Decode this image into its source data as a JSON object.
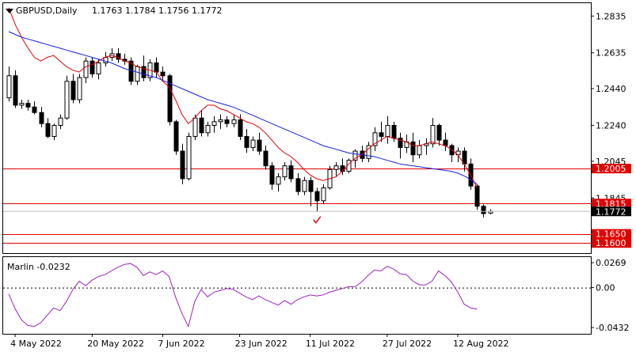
{
  "header": {
    "symbol_timeframe": "GBPUSD,Daily",
    "ohlc": "1.1763 1.1784 1.1756 1.1772"
  },
  "indicator": {
    "label": "Marlin -0.0232"
  },
  "colors": {
    "background": "#ffffff",
    "axis": "#000000",
    "ma_fast": "#e00000",
    "ma_slow": "#1020e0",
    "level_line": "#e00000",
    "level_label_bg": "#e00000",
    "oscillator": "#a020c0",
    "price_marker_bg": "#000000"
  },
  "chart_data": [
    {
      "type": "candlestick",
      "title": "GBPUSD,Daily",
      "y_axis": {
        "ylim": [
          1.1545,
          1.2905
        ],
        "tick_labels": [
          "1.2835",
          "1.2635",
          "1.2440",
          "1.2240",
          "1.2045",
          "1.1845",
          "1.1772"
        ]
      },
      "x_axis": {
        "tick_labels": [
          "4 May 2022",
          "20 May 2022",
          "7 Jun 2022",
          "23 Jun 2022",
          "11 Jul 2022",
          "27 Jul 2022",
          "12 Aug 2022"
        ],
        "tick_index": [
          1,
          13,
          24,
          36,
          47,
          59,
          70
        ]
      },
      "levels": [
        {
          "value": 1.2005,
          "label": "1.2005"
        },
        {
          "value": 1.1815,
          "label": "1.1815"
        },
        {
          "value": 1.165,
          "label": "1.1650"
        },
        {
          "value": 1.16,
          "label": "1.1600"
        }
      ],
      "current_price": {
        "value": 1.1772,
        "label": "1.1772"
      },
      "marker": {
        "type": "check",
        "index": 48
      },
      "candles": [
        [
          1.239,
          1.256,
          1.237,
          1.251
        ],
        [
          1.251,
          1.254,
          1.2335,
          1.235
        ],
        [
          1.235,
          1.238,
          1.233,
          1.236
        ],
        [
          1.236,
          1.238,
          1.232,
          1.234
        ],
        [
          1.234,
          1.237,
          1.23,
          1.231
        ],
        [
          1.231,
          1.234,
          1.223,
          1.225
        ],
        [
          1.225,
          1.228,
          1.217,
          1.218
        ],
        [
          1.218,
          1.225,
          1.216,
          1.224
        ],
        [
          1.224,
          1.23,
          1.222,
          1.228
        ],
        [
          1.228,
          1.251,
          1.227,
          1.248
        ],
        [
          1.248,
          1.252,
          1.236,
          1.238
        ],
        [
          1.238,
          1.252,
          1.236,
          1.25
        ],
        [
          1.25,
          1.261,
          1.247,
          1.259
        ],
        [
          1.259,
          1.261,
          1.25,
          1.252
        ],
        [
          1.252,
          1.26,
          1.249,
          1.258
        ],
        [
          1.258,
          1.264,
          1.256,
          1.261
        ],
        [
          1.261,
          1.266,
          1.259,
          1.263
        ],
        [
          1.263,
          1.266,
          1.258,
          1.26
        ],
        [
          1.26,
          1.263,
          1.257,
          1.259
        ],
        [
          1.259,
          1.261,
          1.246,
          1.248
        ],
        [
          1.248,
          1.257,
          1.246,
          1.256
        ],
        [
          1.256,
          1.262,
          1.248,
          1.25
        ],
        [
          1.25,
          1.26,
          1.248,
          1.258
        ],
        [
          1.258,
          1.261,
          1.25,
          1.253
        ],
        [
          1.253,
          1.256,
          1.248,
          1.251
        ],
        [
          1.251,
          1.252,
          1.224,
          1.226
        ],
        [
          1.226,
          1.227,
          1.208,
          1.21
        ],
        [
          1.21,
          1.214,
          1.192,
          1.195
        ],
        [
          1.195,
          1.22,
          1.194,
          1.218
        ],
        [
          1.218,
          1.23,
          1.216,
          1.228
        ],
        [
          1.228,
          1.232,
          1.218,
          1.22
        ],
        [
          1.22,
          1.226,
          1.218,
          1.224
        ],
        [
          1.224,
          1.229,
          1.22,
          1.226
        ],
        [
          1.226,
          1.23,
          1.222,
          1.227
        ],
        [
          1.227,
          1.229,
          1.223,
          1.225
        ],
        [
          1.225,
          1.23,
          1.223,
          1.227
        ],
        [
          1.227,
          1.23,
          1.216,
          1.218
        ],
        [
          1.218,
          1.222,
          1.209,
          1.212
        ],
        [
          1.212,
          1.218,
          1.21,
          1.216
        ],
        [
          1.216,
          1.22,
          1.208,
          1.21
        ],
        [
          1.21,
          1.213,
          1.2,
          1.202
        ],
        [
          1.202,
          1.204,
          1.189,
          1.192
        ],
        [
          1.192,
          1.198,
          1.188,
          1.196
        ],
        [
          1.196,
          1.204,
          1.194,
          1.202
        ],
        [
          1.202,
          1.205,
          1.193,
          1.195
        ],
        [
          1.195,
          1.198,
          1.186,
          1.188
        ],
        [
          1.188,
          1.196,
          1.186,
          1.194
        ],
        [
          1.194,
          1.196,
          1.18,
          1.188
        ],
        [
          1.188,
          1.19,
          1.177,
          1.183
        ],
        [
          1.183,
          1.192,
          1.181,
          1.19
        ],
        [
          1.19,
          1.202,
          1.189,
          1.2
        ],
        [
          1.2,
          1.204,
          1.196,
          1.202
        ],
        [
          1.202,
          1.206,
          1.197,
          1.199
        ],
        [
          1.199,
          1.206,
          1.198,
          1.205
        ],
        [
          1.205,
          1.211,
          1.201,
          1.21
        ],
        [
          1.21,
          1.213,
          1.204,
          1.206
        ],
        [
          1.206,
          1.215,
          1.204,
          1.213
        ],
        [
          1.213,
          1.223,
          1.21,
          1.22
        ],
        [
          1.22,
          1.226,
          1.215,
          1.218
        ],
        [
          1.218,
          1.229,
          1.214,
          1.224
        ],
        [
          1.224,
          1.226,
          1.215,
          1.217
        ],
        [
          1.217,
          1.22,
          1.206,
          1.212
        ],
        [
          1.212,
          1.219,
          1.209,
          1.215
        ],
        [
          1.215,
          1.22,
          1.204,
          1.208
        ],
        [
          1.208,
          1.216,
          1.206,
          1.213
        ],
        [
          1.213,
          1.217,
          1.208,
          1.214
        ],
        [
          1.214,
          1.228,
          1.212,
          1.224
        ],
        [
          1.224,
          1.225,
          1.213,
          1.216
        ],
        [
          1.216,
          1.22,
          1.21,
          1.213
        ],
        [
          1.213,
          1.214,
          1.204,
          1.208
        ],
        [
          1.208,
          1.212,
          1.204,
          1.21
        ],
        [
          1.21,
          1.212,
          1.199,
          1.203
        ],
        [
          1.203,
          1.206,
          1.189,
          1.191
        ],
        [
          1.191,
          1.192,
          1.178,
          1.18
        ],
        [
          1.18,
          1.181,
          1.174,
          1.176
        ],
        [
          1.1763,
          1.1784,
          1.1756,
          1.1772
        ]
      ],
      "series": [
        {
          "values": [
            1.288,
            1.279,
            1.272,
            1.266,
            1.261,
            1.259,
            1.261,
            1.262,
            1.259,
            1.256,
            1.254,
            1.253,
            1.256,
            1.257,
            1.259,
            1.261,
            1.262,
            1.261,
            1.259,
            1.258,
            1.256,
            1.255,
            1.254,
            1.253,
            1.248,
            1.245,
            1.238,
            1.23,
            1.225,
            1.228,
            1.232,
            1.235,
            1.235,
            1.233,
            1.232,
            1.23,
            1.228,
            1.226,
            1.225,
            1.223,
            1.22,
            1.216,
            1.212,
            1.209,
            1.207,
            1.204,
            1.2,
            1.197,
            1.195,
            1.194,
            1.195,
            1.196,
            1.199,
            1.203,
            1.206,
            1.208,
            1.211,
            1.214,
            1.216,
            1.218,
            1.217,
            1.216,
            1.215,
            1.213,
            1.213,
            1.214,
            1.215,
            1.214,
            1.213,
            1.211,
            1.208,
            1.203,
            1.197,
            1.19
          ]
        },
        {
          "values": [
            1.275,
            1.2735,
            1.272,
            1.271,
            1.27,
            1.269,
            1.268,
            1.267,
            1.266,
            1.265,
            1.264,
            1.263,
            1.262,
            1.261,
            1.26,
            1.259,
            1.258,
            1.2565,
            1.255,
            1.254,
            1.253,
            1.252,
            1.251,
            1.25,
            1.2485,
            1.247,
            1.2455,
            1.244,
            1.2425,
            1.241,
            1.2395,
            1.238,
            1.237,
            1.236,
            1.235,
            1.234,
            1.2325,
            1.231,
            1.2295,
            1.228,
            1.2265,
            1.225,
            1.2235,
            1.222,
            1.2205,
            1.219,
            1.2175,
            1.216,
            1.2145,
            1.213,
            1.212,
            1.211,
            1.21,
            1.209,
            1.2085,
            1.208,
            1.2075,
            1.207,
            1.206,
            1.205,
            1.204,
            1.203,
            1.2025,
            1.202,
            1.2015,
            1.201,
            1.2005,
            1.2,
            1.1995,
            1.199,
            1.198,
            1.1965,
            1.1945,
            1.192
          ]
        }
      ]
    },
    {
      "type": "line",
      "title": "Marlin -0.0232",
      "y_axis": {
        "ylim": [
          -0.05,
          0.033
        ],
        "tick_labels": [
          "0.0269",
          "0.00",
          "-0.0432"
        ],
        "tick_values": [
          0.0269,
          0.0,
          -0.0432
        ]
      },
      "series": [
        {
          "values": [
            -0.007,
            -0.023,
            -0.035,
            -0.041,
            -0.042,
            -0.038,
            -0.03,
            -0.022,
            -0.025,
            -0.015,
            -0.002,
            0.007,
            0.002,
            0.008,
            0.012,
            0.014,
            0.018,
            0.022,
            0.025,
            0.026,
            0.022,
            0.013,
            0.017,
            0.014,
            0.018,
            0.012,
            -0.01,
            -0.028,
            -0.042,
            -0.015,
            -0.002,
            -0.01,
            -0.005,
            -0.003,
            -0.001,
            -0.002,
            -0.006,
            -0.01,
            -0.013,
            -0.009,
            -0.013,
            -0.016,
            -0.019,
            -0.014,
            -0.018,
            -0.013,
            -0.01,
            -0.008,
            -0.009,
            -0.008,
            -0.005,
            -0.003,
            -0.001,
            0.001,
            0.001,
            0.006,
            0.013,
            0.019,
            0.018,
            0.023,
            0.02,
            0.015,
            0.014,
            0.007,
            0.003,
            0.003,
            0.007,
            0.018,
            0.013,
            0.006,
            -0.005,
            -0.018,
            -0.022,
            -0.0232
          ]
        }
      ]
    }
  ]
}
